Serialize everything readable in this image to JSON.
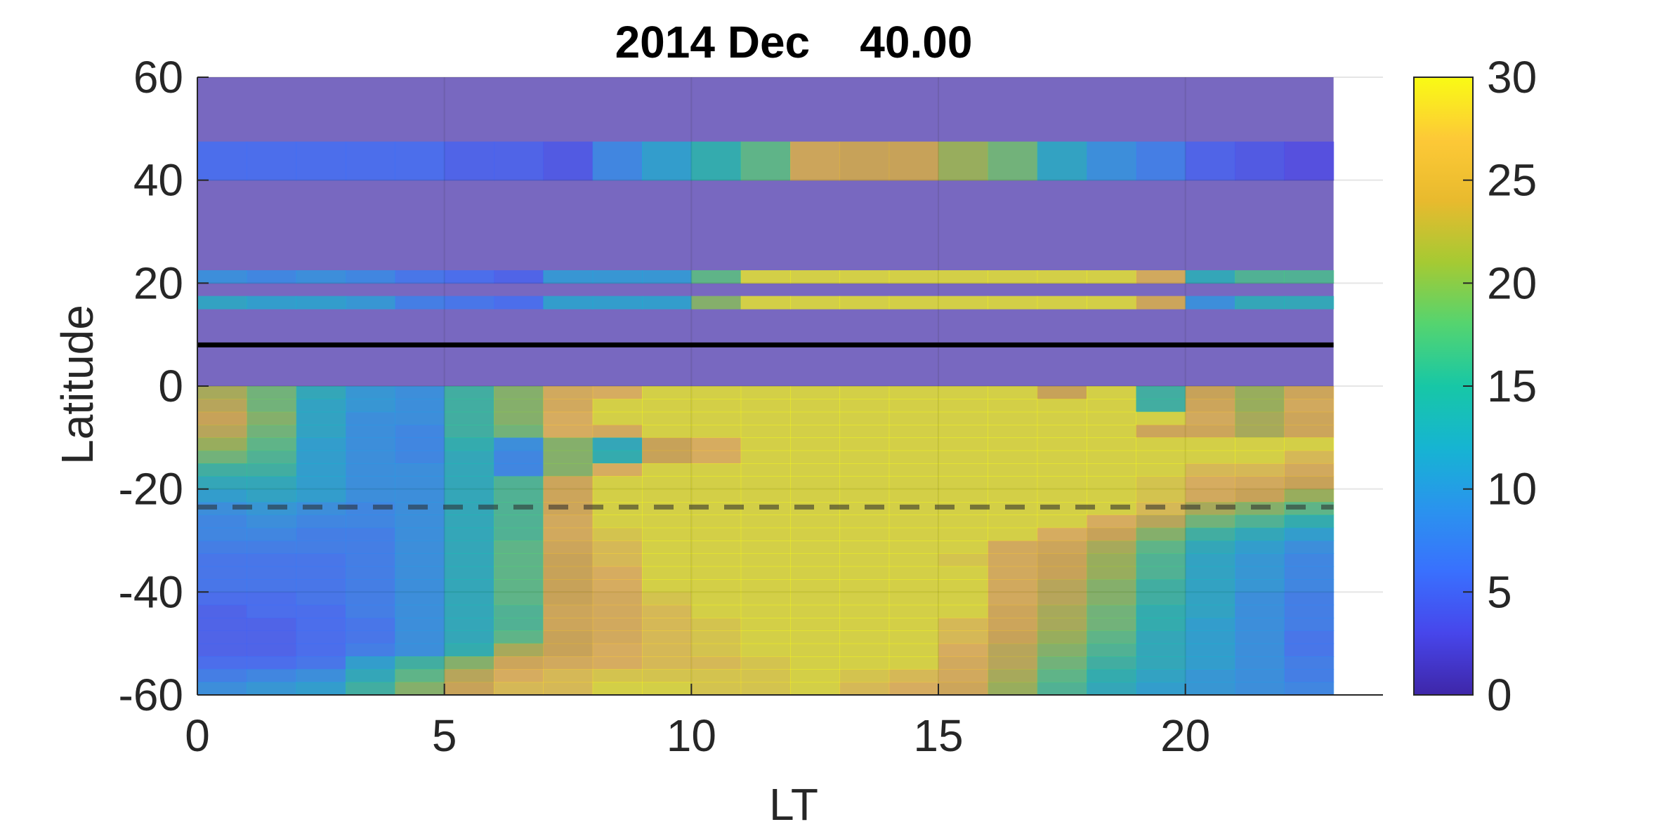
{
  "chart_data": {
    "type": "heatmap",
    "title": "2014 Dec    40.00",
    "xlabel": "LT",
    "ylabel": "Latitude",
    "xlim": [
      0,
      24
    ],
    "ylim": [
      -60,
      60
    ],
    "plot_x_max": 23,
    "xticks": [
      "0",
      "5",
      "10",
      "15",
      "20"
    ],
    "yticks": [
      "60",
      "40",
      "20",
      "0",
      "-20",
      "-40",
      "-60"
    ],
    "colorbar": {
      "limits": [
        0,
        30
      ],
      "ticks": [
        "30",
        "25",
        "20",
        "15",
        "10",
        "5",
        "0"
      ],
      "colormap": "parula"
    },
    "grid": true,
    "background_color": "#7868c0",
    "solid_line_latitude": 8,
    "dashed_line_latitude": -23.5,
    "y_bands": [
      {
        "lat_top": 47.5,
        "lat_bottom": 40.0,
        "values": [
          6,
          6,
          6,
          6,
          6,
          5,
          5,
          4,
          9,
          12,
          15,
          18,
          25,
          24,
          24,
          21,
          19,
          13,
          10,
          8,
          5,
          4,
          3
        ]
      },
      {
        "lat_top": 22.5,
        "lat_bottom": 20.0,
        "values": [
          10,
          9,
          10,
          9,
          7,
          6,
          5,
          11,
          11,
          11,
          18,
          30,
          30,
          30,
          30,
          30,
          30,
          30,
          30,
          26,
          14,
          17,
          17
        ]
      },
      {
        "lat_top": 17.5,
        "lat_bottom": 15.0,
        "values": [
          13,
          12,
          12,
          11,
          8,
          7,
          6,
          12,
          12,
          12,
          20,
          30,
          30,
          30,
          30,
          30,
          30,
          30,
          30,
          25,
          10,
          14,
          14
        ]
      },
      {
        "lat_top": 0.0,
        "lat_bottom": -2.5,
        "values": [
          22,
          19,
          14,
          11,
          10,
          16,
          20,
          26,
          27,
          30,
          30,
          30,
          30,
          30,
          30,
          30,
          30,
          24,
          30,
          16,
          24,
          21,
          25
        ]
      },
      {
        "lat_top": -2.5,
        "lat_bottom": -5.0,
        "values": [
          23,
          19,
          13,
          11,
          10,
          16,
          20,
          26,
          30,
          30,
          30,
          30,
          30,
          30,
          30,
          30,
          30,
          30,
          30,
          16,
          25,
          21,
          26
        ]
      },
      {
        "lat_top": -5.0,
        "lat_bottom": -7.5,
        "values": [
          24,
          20,
          13,
          10,
          10,
          16,
          20,
          27,
          30,
          30,
          30,
          30,
          30,
          30,
          30,
          30,
          30,
          30,
          30,
          30,
          26,
          22,
          25
        ]
      },
      {
        "lat_top": -7.5,
        "lat_bottom": -10.0,
        "values": [
          23,
          19,
          13,
          10,
          9,
          16,
          19,
          27,
          26,
          30,
          30,
          30,
          30,
          30,
          30,
          30,
          30,
          30,
          30,
          25,
          25,
          22,
          25
        ]
      },
      {
        "lat_top": -10.0,
        "lat_bottom": -12.5,
        "values": [
          21,
          18,
          12,
          10,
          9,
          15,
          10,
          20,
          14,
          24,
          27,
          30,
          30,
          30,
          30,
          30,
          30,
          30,
          30,
          30,
          30,
          30,
          30
        ]
      },
      {
        "lat_top": -12.5,
        "lat_bottom": -15.0,
        "values": [
          19,
          17,
          12,
          10,
          9,
          14,
          9,
          20,
          15,
          24,
          27,
          30,
          30,
          30,
          30,
          30,
          30,
          30,
          30,
          30,
          30,
          30,
          28
        ]
      },
      {
        "lat_top": -15.0,
        "lat_bottom": -17.5,
        "values": [
          16,
          16,
          12,
          10,
          10,
          14,
          9,
          20,
          27,
          30,
          30,
          30,
          30,
          30,
          30,
          30,
          30,
          30,
          30,
          30,
          28,
          28,
          26
        ]
      },
      {
        "lat_top": -17.5,
        "lat_bottom": -20.0,
        "values": [
          14,
          14,
          12,
          10,
          10,
          14,
          17,
          25,
          30,
          30,
          30,
          30,
          30,
          30,
          30,
          30,
          30,
          30,
          30,
          29,
          27,
          26,
          24
        ]
      },
      {
        "lat_top": -20.0,
        "lat_bottom": -22.5,
        "values": [
          12,
          13,
          12,
          10,
          10,
          14,
          17,
          25,
          30,
          30,
          30,
          30,
          30,
          30,
          30,
          30,
          30,
          30,
          30,
          29,
          26,
          24,
          21
        ]
      },
      {
        "lat_top": -22.5,
        "lat_bottom": -25.0,
        "values": [
          10,
          11,
          10,
          9,
          10,
          14,
          17,
          25,
          30,
          30,
          30,
          30,
          30,
          30,
          30,
          30,
          30,
          30,
          30,
          28,
          22,
          20,
          18
        ]
      },
      {
        "lat_top": -25.0,
        "lat_bottom": -27.5,
        "values": [
          9,
          10,
          9,
          9,
          10,
          14,
          17,
          26,
          30,
          30,
          30,
          30,
          30,
          30,
          30,
          30,
          30,
          30,
          27,
          23,
          19,
          17,
          15
        ]
      },
      {
        "lat_top": -27.5,
        "lat_bottom": -30.0,
        "values": [
          9,
          9,
          8,
          8,
          10,
          14,
          17,
          26,
          29,
          30,
          30,
          30,
          30,
          30,
          30,
          30,
          30,
          27,
          24,
          20,
          16,
          14,
          12
        ]
      },
      {
        "lat_top": -30.0,
        "lat_bottom": -32.5,
        "values": [
          8,
          8,
          8,
          8,
          10,
          14,
          18,
          25,
          28,
          30,
          30,
          30,
          30,
          30,
          30,
          30,
          26,
          25,
          22,
          18,
          14,
          12,
          10
        ]
      },
      {
        "lat_top": -32.5,
        "lat_bottom": -35.0,
        "values": [
          7,
          7,
          7,
          8,
          10,
          14,
          18,
          24,
          28,
          30,
          30,
          30,
          30,
          30,
          30,
          29,
          26,
          24,
          21,
          17,
          13,
          11,
          9
        ]
      },
      {
        "lat_top": -35.0,
        "lat_bottom": -37.5,
        "values": [
          7,
          7,
          7,
          8,
          10,
          14,
          18,
          24,
          27,
          30,
          30,
          30,
          30,
          30,
          30,
          30,
          26,
          24,
          21,
          17,
          13,
          11,
          9
        ]
      },
      {
        "lat_top": -37.5,
        "lat_bottom": -40.0,
        "values": [
          7,
          7,
          7,
          8,
          10,
          14,
          18,
          24,
          27,
          30,
          30,
          30,
          30,
          30,
          30,
          30,
          26,
          23,
          20,
          16,
          13,
          11,
          9
        ]
      },
      {
        "lat_top": -40.0,
        "lat_bottom": -42.5,
        "values": [
          6,
          6,
          7,
          8,
          10,
          14,
          18,
          24,
          26,
          29,
          30,
          30,
          30,
          30,
          30,
          30,
          26,
          23,
          20,
          16,
          13,
          10,
          8
        ]
      },
      {
        "lat_top": -42.5,
        "lat_bottom": -45.0,
        "values": [
          5,
          6,
          6,
          8,
          10,
          14,
          17,
          25,
          26,
          28,
          30,
          30,
          30,
          30,
          30,
          30,
          25,
          22,
          19,
          15,
          13,
          10,
          8
        ]
      },
      {
        "lat_top": -45.0,
        "lat_bottom": -47.5,
        "values": [
          5,
          5,
          6,
          7,
          10,
          14,
          17,
          25,
          26,
          28,
          29,
          30,
          30,
          30,
          30,
          28,
          25,
          22,
          19,
          15,
          12,
          10,
          8
        ]
      },
      {
        "lat_top": -47.5,
        "lat_bottom": -50.0,
        "values": [
          5,
          5,
          6,
          7,
          10,
          14,
          18,
          24,
          26,
          28,
          29,
          30,
          30,
          30,
          30,
          28,
          24,
          21,
          18,
          14,
          12,
          10,
          7
        ]
      },
      {
        "lat_top": -50.0,
        "lat_bottom": -52.5,
        "values": [
          5,
          5,
          6,
          8,
          10,
          15,
          22,
          24,
          27,
          28,
          29,
          30,
          30,
          30,
          30,
          27,
          23,
          20,
          17,
          14,
          12,
          10,
          7
        ]
      },
      {
        "lat_top": -52.5,
        "lat_bottom": -55.0,
        "values": [
          6,
          6,
          7,
          12,
          16,
          20,
          25,
          26,
          27,
          28,
          28,
          29,
          30,
          30,
          30,
          26,
          23,
          19,
          16,
          14,
          12,
          10,
          8
        ]
      },
      {
        "lat_top": -55.0,
        "lat_bottom": -57.5,
        "values": [
          8,
          9,
          10,
          14,
          18,
          23,
          27,
          28,
          29,
          29,
          29,
          29,
          30,
          29,
          28,
          26,
          22,
          18,
          15,
          13,
          11,
          10,
          8
        ]
      },
      {
        "lat_top": -57.5,
        "lat_bottom": -60.0,
        "values": [
          10,
          11,
          12,
          16,
          20,
          24,
          28,
          28,
          30,
          30,
          29,
          29,
          30,
          28,
          27,
          25,
          21,
          17,
          14,
          12,
          11,
          10,
          9
        ]
      }
    ]
  }
}
